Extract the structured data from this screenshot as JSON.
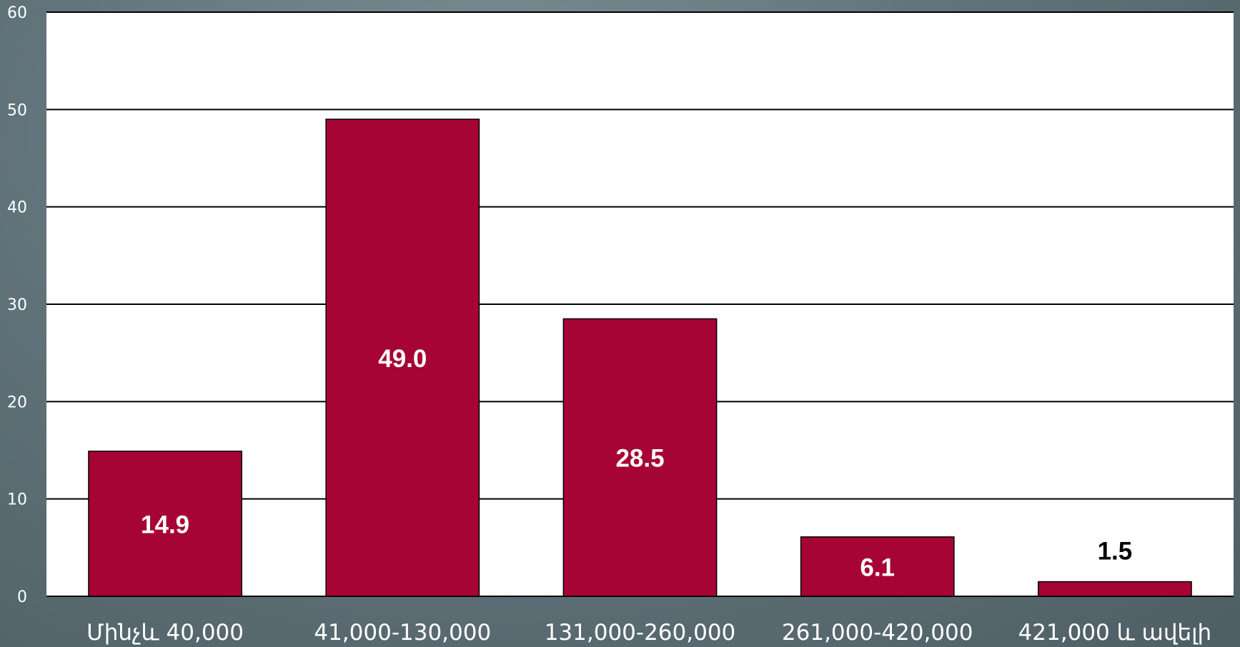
{
  "chart_data": {
    "type": "bar",
    "title": "",
    "xlabel": "",
    "ylabel": "",
    "categories": [
      "Մինչև 40,000",
      "41,000-130,000",
      "131,000-260,000",
      "261,000-420,000",
      "421,000 և ավելի"
    ],
    "values": [
      14.9,
      49.0,
      28.5,
      6.1,
      1.5
    ],
    "data_labels": [
      "14.9",
      "49.0",
      "28.5",
      "6.1",
      "1.5"
    ],
    "ylim": [
      0,
      60
    ],
    "y_ticks": [
      0,
      10,
      20,
      30,
      40,
      50,
      60
    ],
    "grid": true,
    "legend": "none",
    "colors": {
      "bar": "#a60434",
      "bar_edge": "#000000",
      "plot_bg": "#ffffff",
      "gridline": "#000000",
      "label_inside": "#ffffff",
      "label_outside": "#000000"
    }
  }
}
